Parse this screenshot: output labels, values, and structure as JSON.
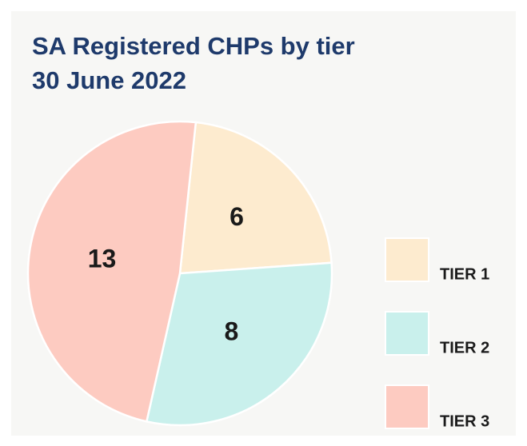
{
  "chart_data": {
    "type": "pie",
    "title": "SA Registered CHPs by tier",
    "subtitle": "30 June 2022",
    "categories": [
      "TIER 1",
      "TIER 2",
      "TIER 3"
    ],
    "values": [
      6,
      8,
      13
    ],
    "colors": [
      "#fdebcf",
      "#c9f0ec",
      "#fdcbc1"
    ]
  }
}
